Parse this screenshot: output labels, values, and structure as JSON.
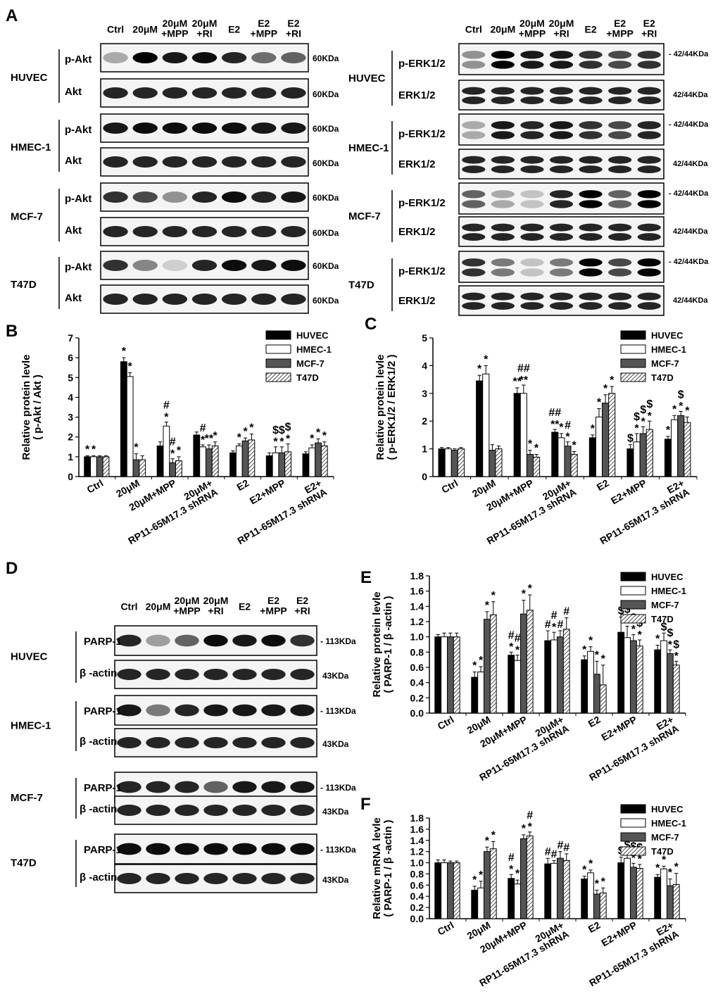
{
  "figure": {
    "panel_letters": {
      "A": "A",
      "B": "B",
      "C": "C",
      "D": "D",
      "E": "E",
      "F": "F"
    },
    "lane_labels_A": [
      "Ctrl",
      "20μM",
      "20μM\n+MPP",
      "20μM\n+RI",
      "E2",
      "E2\n+MPP",
      "E2\n+RI"
    ],
    "lane_labels_D": [
      "Ctrl",
      "20μM",
      "20μM\n+MPP",
      "20μM\n+RI",
      "E2",
      "E2\n+MPP",
      "E2\n+RI"
    ],
    "cell_lines": [
      "HUVEC",
      "HMEC-1",
      "MCF-7",
      "T47D"
    ],
    "blots_akt": {
      "protein_top": "p-Akt",
      "protein_bottom": "Akt",
      "size": "60KDa"
    },
    "blots_erk": {
      "protein_top": "p-ERK1/2",
      "protein_bottom": "ERK1/2",
      "size": "42/44KDa"
    },
    "blots_parp": {
      "protein_top": "PARP-1",
      "protein_bottom": "β -actin",
      "size_top": "113KDa",
      "size_bottom": "43KDa"
    },
    "legend": [
      "HUVEC",
      "HMEC-1",
      "MCF-7",
      "T47D"
    ],
    "series_colors": {
      "HUVEC": "#000000",
      "HMEC-1": "#ffffff",
      "MCF-7": "#555555",
      "T47D": "hatch"
    }
  },
  "chart_data": [
    {
      "panel": "B",
      "type": "bar",
      "ylabel": "Relative protein levle\n( p-Akt / Akt )",
      "ylim": [
        0,
        7
      ],
      "yticks": [
        "0",
        "1",
        "2",
        "3",
        "4",
        "5",
        "6",
        "7"
      ],
      "categories": [
        "Ctrl",
        "20μM",
        "20μM+MPP",
        "20μM+\nRP11-65M17.3 shRNA",
        "E2",
        "E2+MPP",
        "E2+\nRP11-65M17.3 shRNA"
      ],
      "series": [
        {
          "name": "HUVEC",
          "values": [
            1.0,
            5.8,
            1.55,
            2.1,
            1.2,
            1.05,
            1.15
          ],
          "err": [
            0.05,
            0.2,
            0.2,
            0.15,
            0.1,
            0.15,
            0.1
          ]
        },
        {
          "name": "HMEC-1",
          "values": [
            1.0,
            5.05,
            2.55,
            1.5,
            1.55,
            1.2,
            1.45
          ],
          "err": [
            0.05,
            0.2,
            0.2,
            0.1,
            0.1,
            0.3,
            0.15
          ]
        },
        {
          "name": "MCF-7",
          "values": [
            1.0,
            0.85,
            0.7,
            1.4,
            1.8,
            1.2,
            1.7
          ],
          "err": [
            0.05,
            0.3,
            0.2,
            0.2,
            0.15,
            0.3,
            0.2
          ]
        },
        {
          "name": "T47D",
          "values": [
            1.0,
            0.85,
            0.8,
            1.55,
            1.85,
            1.25,
            1.55
          ],
          "err": [
            0.05,
            0.2,
            0.2,
            0.2,
            0.3,
            0.4,
            0.2
          ]
        }
      ],
      "annotations": [
        [
          "*",
          "*",
          "",
          "",
          "",
          "",
          ""
        ],
        [
          "*",
          "*",
          "#\n*",
          "#\n*",
          "*",
          "$\n*",
          "*"
        ],
        [
          "",
          "*",
          "#\n*",
          "**",
          "*",
          "$\n*",
          "*"
        ],
        [
          "",
          "",
          "*",
          "*",
          "*",
          "$\n*",
          "*"
        ]
      ]
    },
    {
      "panel": "C",
      "type": "bar",
      "ylabel": "Relative protein levle\n( p-ERK1/2 / ERK1/2 )",
      "ylim": [
        0,
        5
      ],
      "yticks": [
        "0",
        "1",
        "2",
        "3",
        "4",
        "5"
      ],
      "categories": [
        "Ctrl",
        "20μM",
        "20μM+MPP",
        "20μM+\nRP11-65M17.3 shRNA",
        "E2",
        "E2+MPP",
        "E2+\nRP11-65M17.3 shRNA"
      ],
      "series": [
        {
          "name": "HUVEC",
          "values": [
            1.0,
            3.45,
            3.0,
            1.6,
            1.4,
            1.0,
            1.35
          ],
          "err": [
            0.05,
            0.2,
            0.2,
            0.1,
            0.1,
            0.15,
            0.1
          ]
        },
        {
          "name": "HMEC-1",
          "values": [
            1.0,
            3.7,
            3.0,
            1.4,
            2.15,
            1.25,
            2.05
          ],
          "err": [
            0.05,
            0.3,
            0.3,
            0.15,
            0.3,
            0.3,
            0.15
          ]
        },
        {
          "name": "MCF-7",
          "values": [
            0.95,
            0.95,
            0.8,
            1.1,
            2.65,
            1.55,
            2.2
          ],
          "err": [
            0.05,
            0.2,
            0.15,
            0.15,
            0.3,
            0.25,
            0.15
          ]
        },
        {
          "name": "T47D",
          "values": [
            1.0,
            1.0,
            0.7,
            0.8,
            3.0,
            1.7,
            1.95
          ],
          "err": [
            0.05,
            0.1,
            0.1,
            0.1,
            0.25,
            0.3,
            0.2
          ]
        }
      ],
      "annotations": [
        [
          "",
          "*",
          "**",
          "##\n**",
          "*",
          "$",
          "*"
        ],
        [
          "",
          "*",
          "##\n**",
          "*",
          "*",
          "$\n*",
          "*"
        ],
        [
          "",
          "",
          "*",
          "#\n*",
          "*",
          "$\n*",
          "$\n*"
        ],
        [
          "",
          "",
          "*",
          "*",
          "*",
          "$\n*",
          "*"
        ]
      ]
    },
    {
      "panel": "E",
      "type": "bar",
      "ylabel": "Relative protein levle\n( PARP-1 / β -actin )",
      "ylim": [
        0,
        1.8
      ],
      "yticks": [
        "0.0",
        "0.2",
        "0.4",
        "0.6",
        "0.8",
        "1.0",
        "1.2",
        "1.4",
        "1.6",
        "1.8"
      ],
      "categories": [
        "Ctrl",
        "20μM",
        "20μM+MPP",
        "20μM+\nRP11-65M17.3 shRNA",
        "E2",
        "E2+MPP",
        "E2+\nRP11-65M17.3 shRNA"
      ],
      "series": [
        {
          "name": "HUVEC",
          "values": [
            1.0,
            0.47,
            0.76,
            0.95,
            0.7,
            1.06,
            0.83
          ],
          "err": [
            0.03,
            0.07,
            0.04,
            0.13,
            0.05,
            0.2,
            0.06
          ]
        },
        {
          "name": "HMEC-1",
          "values": [
            1.0,
            0.54,
            0.69,
            0.96,
            0.81,
            0.99,
            0.95
          ],
          "err": [
            0.05,
            0.07,
            0.07,
            0.1,
            0.06,
            0.15,
            0.1
          ]
        },
        {
          "name": "MCF-7",
          "values": [
            1.0,
            1.23,
            1.3,
            1.0,
            0.51,
            0.95,
            0.78
          ],
          "err": [
            0.05,
            0.1,
            0.18,
            0.08,
            0.17,
            0.08,
            0.05
          ]
        },
        {
          "name": "T47D",
          "values": [
            1.0,
            1.29,
            1.35,
            1.1,
            0.37,
            0.88,
            0.63
          ],
          "err": [
            0.05,
            0.17,
            0.2,
            0.15,
            0.26,
            0.08,
            0.05
          ]
        }
      ],
      "annotations": [
        [
          "",
          "*",
          "#\n*",
          "#",
          "*",
          "$",
          "*"
        ],
        [
          "",
          "*",
          "#\n*",
          "#\n*",
          "*",
          "$\n*",
          "$"
        ],
        [
          "",
          "*",
          "*",
          "#",
          "*",
          "$\n*",
          "$\n*"
        ],
        [
          "",
          "*",
          "*",
          "#",
          "*",
          "$\n*",
          "$\n*"
        ]
      ]
    },
    {
      "panel": "F",
      "type": "bar",
      "ylabel": "Relative mRNA levle\n( PARP-1 / β -actin )",
      "ylim": [
        0,
        1.8
      ],
      "yticks": [
        "0.0",
        "0.2",
        "0.4",
        "0.6",
        "0.8",
        "1.0",
        "1.2",
        "1.4",
        "1.6",
        "1.8"
      ],
      "categories": [
        "Ctrl",
        "20μM",
        "20μM+MPP",
        "20μM+\nRP11-65M17.3 shRNA",
        "E2",
        "E2+MPP",
        "E2+\nRP11-65M17.3 shRNA"
      ],
      "series": [
        {
          "name": "HUVEC",
          "values": [
            1.0,
            0.51,
            0.72,
            0.98,
            0.71,
            1.0,
            0.74
          ],
          "err": [
            0.05,
            0.07,
            0.07,
            0.1,
            0.05,
            0.1,
            0.05
          ]
        },
        {
          "name": "HMEC-1",
          "values": [
            1.0,
            0.55,
            0.62,
            0.99,
            0.82,
            1.08,
            0.89
          ],
          "err": [
            0.05,
            0.12,
            0.07,
            0.05,
            0.05,
            0.12,
            0.05
          ]
        },
        {
          "name": "MCF-7",
          "values": [
            1.0,
            1.2,
            1.43,
            1.08,
            0.44,
            0.92,
            0.59
          ],
          "err": [
            0.03,
            0.08,
            0.07,
            0.12,
            0.07,
            0.07,
            0.12
          ]
        },
        {
          "name": "T47D",
          "values": [
            1.0,
            1.25,
            1.48,
            1.04,
            0.46,
            0.9,
            0.61
          ],
          "err": [
            0.03,
            0.13,
            0.07,
            0.12,
            0.09,
            0.07,
            0.2
          ]
        }
      ],
      "annotations": [
        [
          "",
          "*",
          "#\n*",
          "#",
          "*",
          "$",
          "*"
        ],
        [
          "",
          "*",
          "*",
          "#",
          "*",
          "$",
          "*"
        ],
        [
          "",
          "*",
          "*",
          "#",
          "*",
          "$\n*",
          "*"
        ],
        [
          "",
          "*",
          "#\n*",
          "#",
          "*",
          "$\n*",
          "*"
        ]
      ]
    }
  ]
}
